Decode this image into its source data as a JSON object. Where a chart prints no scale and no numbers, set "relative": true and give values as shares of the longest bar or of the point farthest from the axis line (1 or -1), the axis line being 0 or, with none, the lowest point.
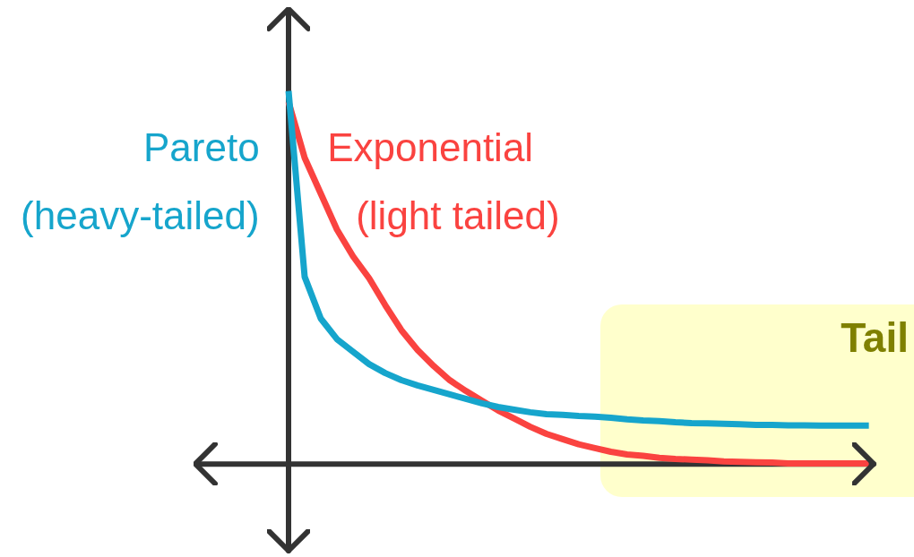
{
  "chart_data": {
    "type": "line",
    "relative": true,
    "tick_labels": false,
    "legend": false,
    "marker": "none",
    "line_style": "solid",
    "categories": [
      null,
      null,
      null,
      null,
      null,
      null,
      null,
      null,
      null,
      null,
      null,
      null,
      null,
      null,
      null,
      null,
      null,
      null,
      null,
      null,
      null,
      null,
      null,
      null,
      null,
      null,
      null,
      null,
      null,
      null,
      null,
      null,
      null,
      null,
      null,
      null,
      null
    ],
    "series": [
      {
        "name": "Pareto (heavy-tailed)",
        "color": "#16a5cc",
        "values": [
          1,
          0.502,
          0.39,
          0.335,
          0.301,
          0.268,
          0.244,
          0.225,
          0.211,
          0.199,
          0.187,
          0.175,
          0.163,
          0.153,
          0.146,
          0.139,
          0.134,
          0.132,
          0.129,
          0.127,
          0.124,
          0.12,
          0.117,
          0.115,
          0.112,
          0.11,
          0.109,
          0.108,
          0.107,
          0.105,
          0.105,
          0.104,
          0.104,
          0.103,
          0.103,
          0.103,
          0.103
        ]
      },
      {
        "name": "Exponential (light tailed)",
        "color": "#fa4340",
        "values": [
          0.971,
          0.821,
          0.725,
          0.629,
          0.557,
          0.498,
          0.426,
          0.359,
          0.306,
          0.263,
          0.225,
          0.196,
          0.17,
          0.144,
          0.122,
          0.1,
          0.081,
          0.067,
          0.053,
          0.043,
          0.033,
          0.026,
          0.022,
          0.017,
          0.014,
          0.012,
          0.01,
          0.007,
          0.006,
          0.005,
          0.004,
          0.002,
          0.002,
          0.002,
          0.002,
          0.002,
          0.002
        ]
      }
    ],
    "annotations": [
      "Tail"
    ]
  }
}
